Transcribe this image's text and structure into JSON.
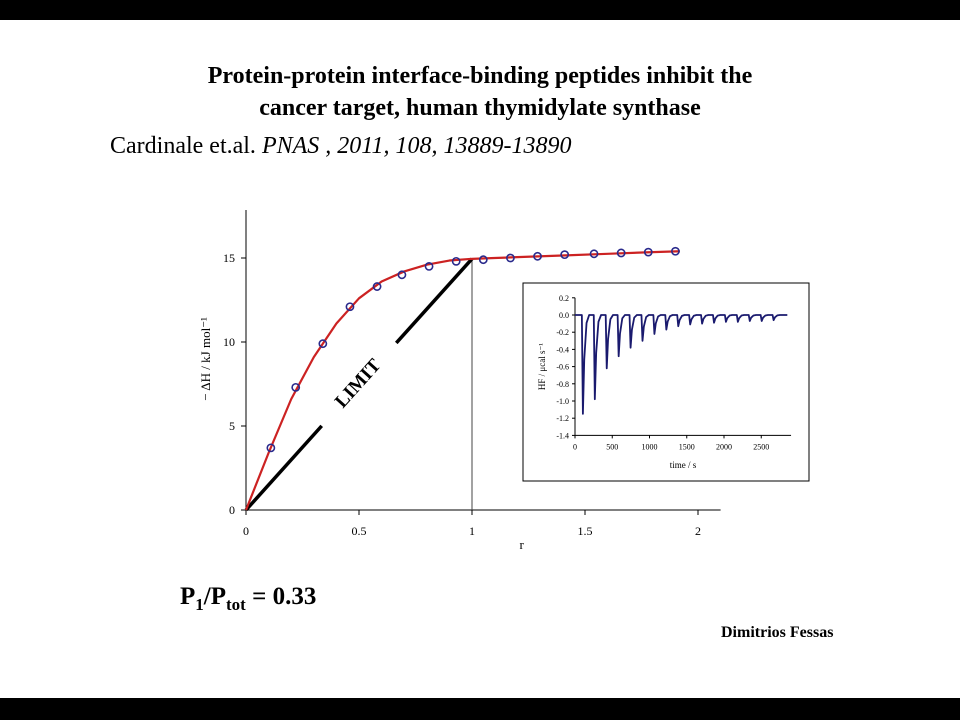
{
  "title_lines": [
    "Protein-protein interface-binding peptides inhibit the",
    "cancer target, human thymidylate synthase"
  ],
  "citation": {
    "authors": "Cardinale et.al.",
    "journal": "PNAS , 2011, 108, 13889-13890"
  },
  "ratio": {
    "p": "P",
    "sub1": "1",
    "slash": "/P",
    "sub2": "tot",
    "rest": " = 0.33"
  },
  "author": "Dimitrios Fessas",
  "colors": {
    "fit_line": "#cc2222",
    "points": "#2a2a8c",
    "inset_trace": "#1a1a6e",
    "limit_line": "#000000"
  },
  "chart_data": [
    {
      "type": "scatter",
      "xlabel": "r",
      "ylabel": "− ΔH / kJ mol⁻¹",
      "xlim": [
        0,
        2.1
      ],
      "ylim": [
        0,
        18
      ],
      "x_ticks": [
        0,
        0.5,
        1,
        1.5,
        2
      ],
      "x_tick_labels": [
        "0",
        "0.5",
        "1",
        "1.5",
        "2"
      ],
      "y_ticks": [
        0,
        5,
        10,
        15
      ],
      "y_tick_labels": [
        "0",
        "5",
        "10",
        "15"
      ],
      "series": [
        {
          "kind": "points",
          "x": [
            0.11,
            0.22,
            0.34,
            0.46,
            0.58,
            0.69,
            0.81,
            0.93,
            1.05,
            1.17,
            1.29,
            1.41,
            1.54,
            1.66,
            1.78,
            1.9
          ],
          "y": [
            3.7,
            7.3,
            9.9,
            12.1,
            13.3,
            14.0,
            14.5,
            14.8,
            14.9,
            15.0,
            15.1,
            15.2,
            15.25,
            15.3,
            15.35,
            15.4
          ]
        },
        {
          "kind": "fit",
          "x": [
            0,
            0.1,
            0.2,
            0.3,
            0.4,
            0.5,
            0.6,
            0.7,
            0.8,
            0.9,
            1.0,
            1.1,
            1.2,
            1.4,
            1.6,
            1.8,
            1.92
          ],
          "y": [
            0,
            3.4,
            6.6,
            9.1,
            11.1,
            12.6,
            13.6,
            14.2,
            14.6,
            14.85,
            14.95,
            15.0,
            15.05,
            15.15,
            15.25,
            15.35,
            15.4
          ]
        },
        {
          "kind": "limit",
          "label": "LIMIT",
          "x": [
            0,
            1.0
          ],
          "y": [
            0,
            14.95
          ]
        }
      ],
      "vline_x": 1.0
    },
    {
      "type": "line",
      "xlabel": "time / s",
      "ylabel": "HF / μcal s⁻¹",
      "xlim": [
        0,
        2900
      ],
      "ylim": [
        -1.4,
        0.2
      ],
      "x_ticks": [
        0,
        500,
        1000,
        1500,
        2000,
        2500
      ],
      "x_tick_labels": [
        "0",
        "500",
        "1000",
        "1500",
        "2000",
        "2500"
      ],
      "y_ticks": [
        0.2,
        0.0,
        -0.2,
        -0.4,
        -0.6,
        -0.8,
        -1.0,
        -1.2,
        -1.4
      ],
      "y_tick_labels": [
        "0.2",
        "0.0",
        "-0.2",
        "-0.4",
        "-0.6",
        "-0.8",
        "-1.0",
        "-1.2",
        "-1.4"
      ],
      "injections": {
        "times": [
          100,
          260,
          420,
          580,
          740,
          900,
          1060,
          1220,
          1380,
          1540,
          1700,
          1860,
          2020,
          2180,
          2340,
          2500,
          2660
        ],
        "peaks": [
          -1.15,
          -0.98,
          -0.62,
          -0.48,
          -0.38,
          -0.3,
          -0.22,
          -0.17,
          -0.13,
          -0.11,
          -0.1,
          -0.09,
          -0.08,
          -0.08,
          -0.07,
          -0.07,
          -0.06
        ]
      },
      "baseline": 0.0,
      "t_end": 2850
    }
  ]
}
